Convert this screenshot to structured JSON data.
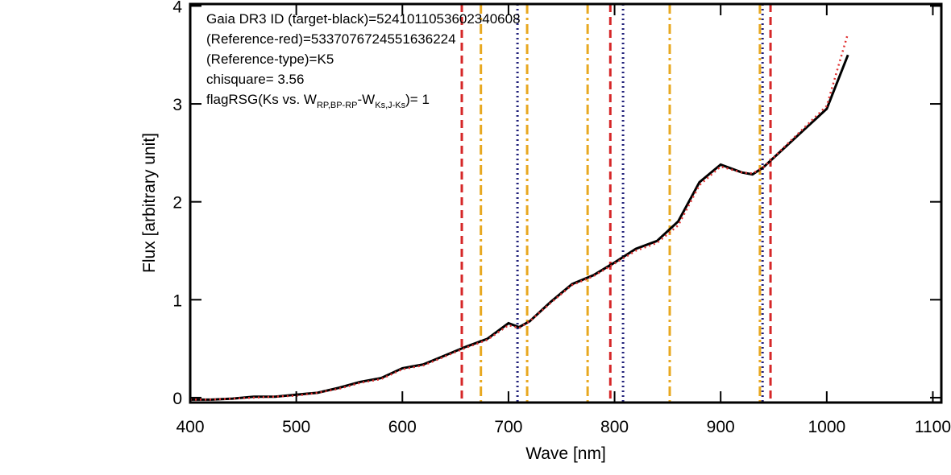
{
  "chart_data": {
    "type": "line",
    "annotations": [
      "Gaia DR3 ID (target-black)=5241011053602340608",
      "(Reference-red)=5337076724551636224",
      "(Reference-type)=K5",
      "chisquare=  3.56"
    ],
    "flag_annotation": [
      "flagRSG(Ks vs. W",
      "RP,BP-RP",
      "-W",
      "Ks,J-Ks",
      ")= 1"
    ],
    "x_label": "Wave [nm]",
    "y_label": "Flux [arbitrary unit]",
    "xlim": [
      400,
      1108
    ],
    "ylim": [
      -0.05,
      4.02
    ],
    "xticks": [
      400,
      500,
      600,
      700,
      800,
      900,
      1000,
      1100
    ],
    "yticks": [
      0,
      1,
      2,
      3,
      4
    ],
    "x": [
      400,
      420,
      440,
      460,
      480,
      500,
      520,
      540,
      560,
      580,
      600,
      620,
      640,
      660,
      680,
      700,
      710,
      720,
      740,
      760,
      780,
      800,
      820,
      840,
      860,
      880,
      900,
      920,
      930,
      940,
      960,
      980,
      1000,
      1020
    ],
    "series": [
      {
        "color": "#000000",
        "style": "solid",
        "values": [
          -0.02,
          -0.02,
          -0.01,
          0.01,
          0.01,
          0.03,
          0.05,
          0.1,
          0.16,
          0.2,
          0.3,
          0.34,
          0.43,
          0.52,
          0.6,
          0.76,
          0.72,
          0.78,
          0.98,
          1.16,
          1.25,
          1.38,
          1.52,
          1.6,
          1.8,
          2.2,
          2.38,
          2.3,
          2.28,
          2.35,
          2.55,
          2.75,
          2.95,
          3.5
        ]
      },
      {
        "color": "#e03030",
        "style": "dotted",
        "values": [
          -0.02,
          -0.02,
          -0.01,
          0.0,
          0.01,
          0.02,
          0.05,
          0.09,
          0.15,
          0.19,
          0.29,
          0.33,
          0.42,
          0.51,
          0.59,
          0.74,
          0.71,
          0.78,
          0.97,
          1.15,
          1.24,
          1.37,
          1.5,
          1.58,
          1.76,
          2.17,
          2.36,
          2.3,
          2.29,
          2.35,
          2.56,
          2.77,
          2.98,
          3.72
        ]
      }
    ],
    "vlines": [
      {
        "color": "#d62728",
        "style": "dashed",
        "x": [
          656,
          796,
          947
        ]
      },
      {
        "color": "#e8a820",
        "style": "dashdot",
        "x": [
          674,
          717.6,
          774.6,
          852,
          937
        ]
      },
      {
        "color": "#20207a",
        "style": "dotted",
        "x": [
          708.5,
          808,
          939.5
        ]
      }
    ]
  }
}
